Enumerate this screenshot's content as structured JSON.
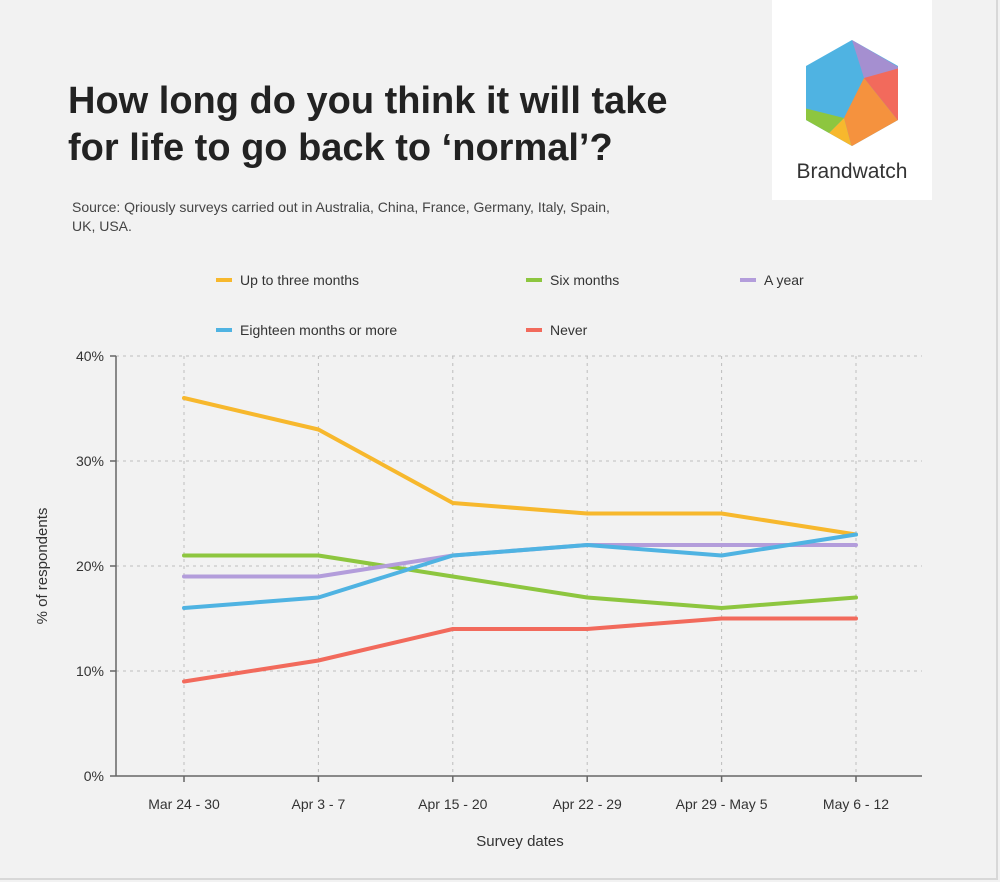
{
  "title_lines": [
    "How long do you think it will take",
    "for life to go back to ‘normal’?"
  ],
  "source": "Source: Qriously surveys carried out in Australia, China, France, Germany, Italy, Spain, UK, USA.",
  "brand": "Brandwatch",
  "chart_data": {
    "type": "line",
    "title": "How long do you think it will take for life to go back to ‘normal’?",
    "xlabel": "Survey dates",
    "ylabel": "% of respondents",
    "categories": [
      "Mar 24 - 30",
      "Apr 3 - 7",
      "Apr 15 - 20",
      "Apr 22 - 29",
      "Apr 29 - May 5",
      "May 6 - 12"
    ],
    "ylim": [
      0,
      40
    ],
    "yticks": [
      0,
      10,
      20,
      30,
      40
    ],
    "ytick_labels": [
      "0%",
      "10%",
      "20%",
      "30%",
      "40%"
    ],
    "grid": true,
    "legend_position": "top",
    "series": [
      {
        "name": "Up to three months",
        "color": "#f7b82d",
        "values": [
          36,
          33,
          26,
          25,
          25,
          23
        ]
      },
      {
        "name": "Six months",
        "color": "#8dc63f",
        "values": [
          21,
          21,
          19,
          17,
          16,
          17
        ]
      },
      {
        "name": "A year",
        "color": "#b39ddb",
        "values": [
          19,
          19,
          21,
          22,
          22,
          22
        ]
      },
      {
        "name": "Eighteen months or more",
        "color": "#4fb3e2",
        "values": [
          16,
          17,
          21,
          22,
          21,
          23
        ]
      },
      {
        "name": "Never",
        "color": "#f26a5c",
        "values": [
          9,
          11,
          14,
          14,
          15,
          15
        ]
      }
    ]
  }
}
